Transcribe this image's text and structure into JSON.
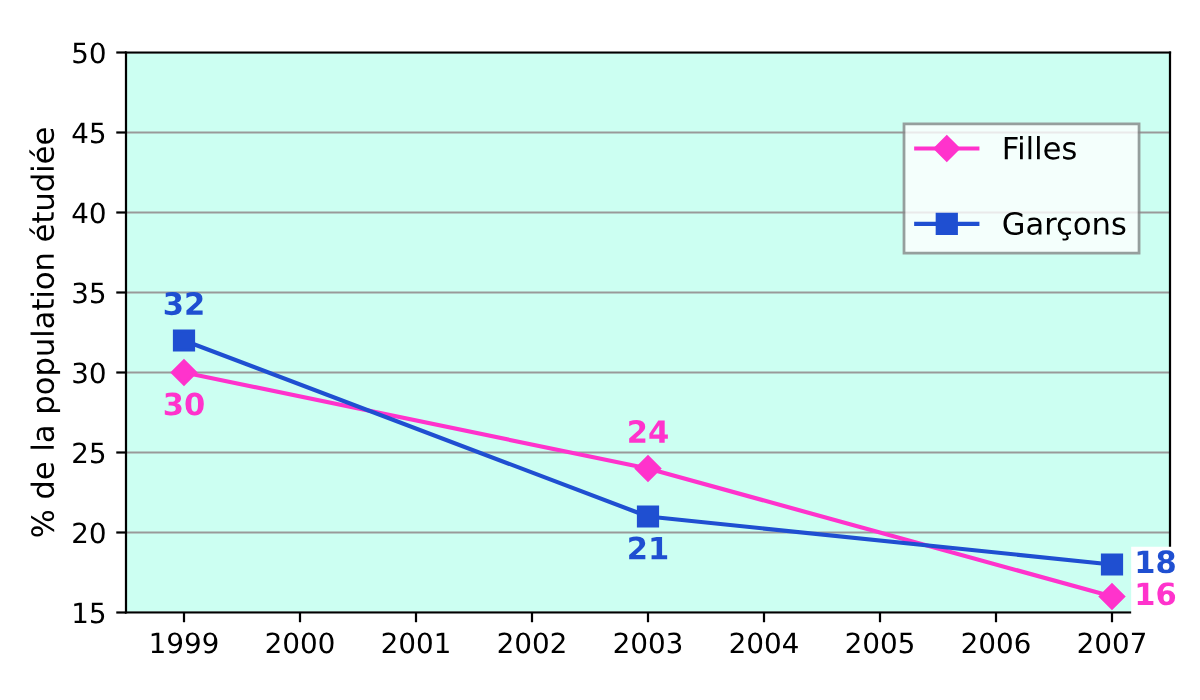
{
  "chart_data": {
    "type": "line",
    "ylabel": "% de la population étudiée",
    "x": [
      1999,
      2003,
      2007
    ],
    "series": [
      {
        "name": "Filles",
        "color": "#ff33cc",
        "values": [
          30,
          24,
          16
        ],
        "marker": "diamond"
      },
      {
        "name": "Garçons",
        "color": "#1f4fd1",
        "values": [
          32,
          21,
          18
        ],
        "marker": "square"
      }
    ],
    "xlim": [
      1998.5,
      2007.5
    ],
    "xticks": [
      1999,
      2000,
      2001,
      2002,
      2003,
      2004,
      2005,
      2006,
      2007
    ],
    "ylim": [
      15,
      50
    ],
    "yticks": [
      15,
      20,
      25,
      30,
      35,
      40,
      45,
      50
    ],
    "grid": "y",
    "legend": "top right",
    "data_labels": true,
    "line_style": "solid"
  }
}
